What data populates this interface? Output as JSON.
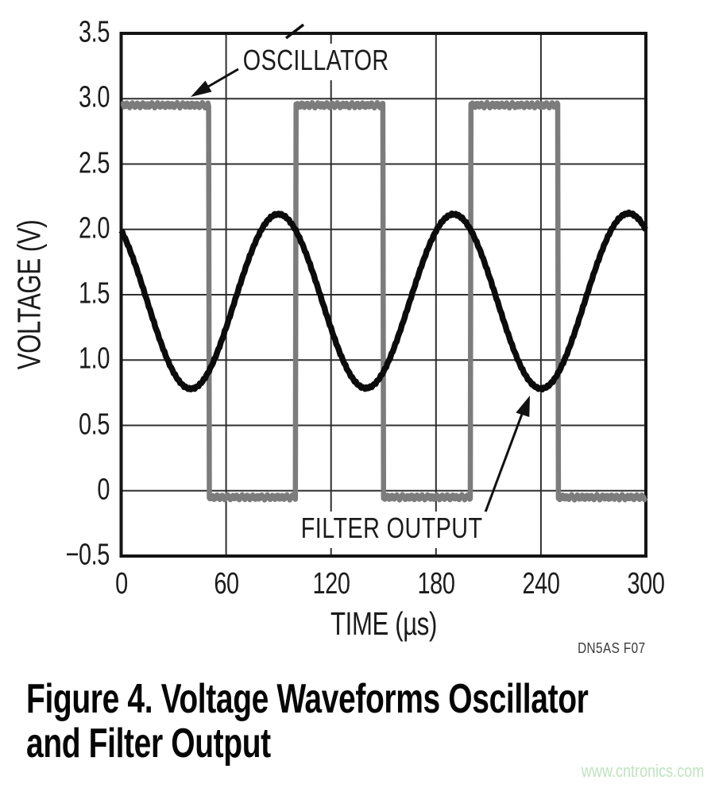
{
  "figure": {
    "caption_line1": "Figure 4. Voltage Waveforms Oscillator",
    "caption_line2": "and Filter Output",
    "credit": "DN5AS F07",
    "watermark": "www.cntronics.com"
  },
  "chart_data": {
    "type": "line",
    "title": "",
    "xlabel": "TIME (µs)",
    "ylabel": "VOLTAGE (V)",
    "xlim": [
      0,
      300
    ],
    "ylim": [
      -0.5,
      3.5
    ],
    "grid": true,
    "grid_color": "#2f2f2f",
    "border_color": "#141414",
    "x_tick_values": [
      0,
      60,
      120,
      180,
      240,
      300
    ],
    "x_tick_labels": [
      "0",
      "60",
      "120",
      "180",
      "240",
      "300"
    ],
    "y_tick_values": [
      3.5,
      3.0,
      2.5,
      2.0,
      1.5,
      1.0,
      0.5,
      0,
      -0.5
    ],
    "y_tick_labels": [
      "3.5",
      "3.0",
      "2.5",
      "2.0",
      "1.5",
      "1.0",
      "0.5",
      "0",
      "−0.5"
    ],
    "series": [
      {
        "name": "OSCILLATOR",
        "shape": "square",
        "color": "#7c7c7c",
        "high_v": 2.95,
        "low_v": -0.05,
        "period_us": 100,
        "duty_cycle": 0.5,
        "first_falling_edge_us": 50,
        "key_points": [
          [
            0,
            2.95
          ],
          [
            50,
            -0.05
          ],
          [
            100,
            2.95
          ],
          [
            150,
            -0.05
          ],
          [
            200,
            2.95
          ],
          [
            250,
            -0.05
          ],
          [
            300,
            -0.05
          ]
        ]
      },
      {
        "name": "FILTER OUTPUT",
        "shape": "sine",
        "color": "#0c0c0c",
        "mean_v": 1.45,
        "amplitude_v": 0.67,
        "period_us": 100,
        "peak_at_us": 90,
        "min_v": 0.78,
        "max_v": 2.12,
        "start_v": 2.0,
        "key_points": [
          [
            0,
            2.0
          ],
          [
            40,
            0.78
          ],
          [
            90,
            2.12
          ],
          [
            140,
            0.78
          ],
          [
            190,
            2.12
          ],
          [
            240,
            0.78
          ],
          [
            290,
            2.12
          ],
          [
            300,
            1.98
          ]
        ]
      }
    ],
    "annotations": [
      {
        "text": "OSCILLATOR",
        "arrow_points_to_us": 40
      },
      {
        "text": "FILTER OUTPUT",
        "arrow_points_to_us": 240
      }
    ],
    "legend_position": "in-plot annotations"
  }
}
